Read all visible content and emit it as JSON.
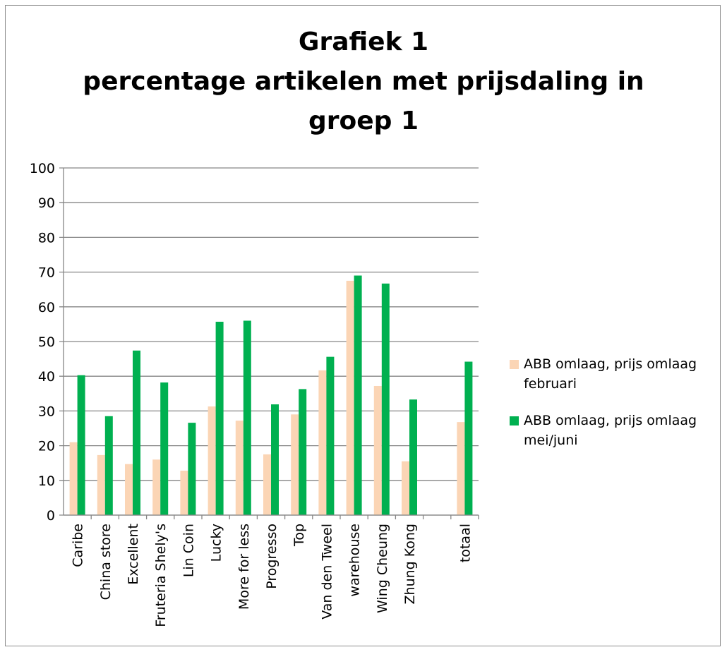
{
  "chart_data": {
    "type": "bar",
    "title_lines": [
      "Grafiek 1",
      "percentage artikelen met prijsdaling in",
      "groep 1"
    ],
    "categories": [
      "Caribe",
      "China store",
      "Excellent",
      "Fruteria Shely's",
      "Lin Coin",
      "Lucky",
      "More for less",
      "Progresso",
      "Top",
      "Van den Tweel",
      "warehouse",
      "Wing Cheung",
      "Zhung Kong",
      "",
      "totaal"
    ],
    "series": [
      {
        "name": "ABB omlaag, prijs omlaag februari",
        "color": "#fbd5b5",
        "values": [
          21,
          17.3,
          14.7,
          16,
          12.8,
          31.3,
          27.2,
          17.5,
          29,
          41.7,
          67.5,
          37.2,
          15.5,
          null,
          26.8
        ]
      },
      {
        "name": "ABB omlaag, prijs omlaag mei/juni",
        "color": "#00b050",
        "values": [
          40.3,
          28.5,
          47.4,
          38.2,
          26.6,
          55.7,
          56,
          31.9,
          36.3,
          45.6,
          69,
          66.7,
          33.3,
          null,
          44.2
        ]
      }
    ],
    "ylim": [
      0,
      100
    ],
    "yticks": [
      0,
      10,
      20,
      30,
      40,
      50,
      60,
      70,
      80,
      90,
      100
    ],
    "grid": true,
    "legend_position": "right"
  }
}
